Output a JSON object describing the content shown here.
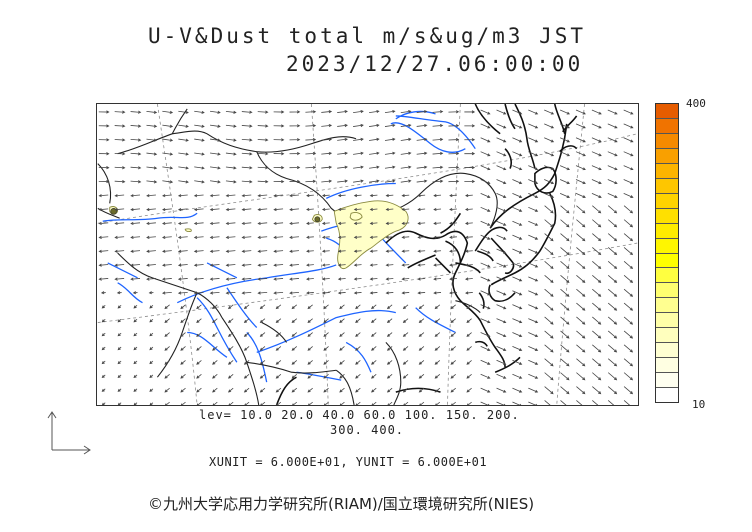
{
  "title": {
    "line1": "U-V&Dust total m/s&ug/m3 JST",
    "line2": "2023/12/27.06:00:00"
  },
  "colorbar": {
    "max_label": "400",
    "min_label": "10",
    "colors": [
      "#e65c00",
      "#f07300",
      "#f58a00",
      "#f9a000",
      "#fcb400",
      "#fec600",
      "#ffd300",
      "#ffe000",
      "#ffec00",
      "#fff600",
      "#ffff00",
      "#ffff40",
      "#ffff70",
      "#ffff90",
      "#ffffa8",
      "#ffffbe",
      "#ffffd2",
      "#ffffe2",
      "#fffff0",
      "#ffffff"
    ]
  },
  "levels": {
    "line1": "lev= 10.0 20.0 40.0 60.0 100. 150. 200.",
    "line2": "300. 400."
  },
  "units": "XUNIT = 6.000E+01, YUNIT = 6.000E+01",
  "credit": "©九州大学応用力学研究所(RIAM)/国立環境研究所(NIES)",
  "map_colors": {
    "coast": "#111111",
    "border": "#222222",
    "river": "#1e64ff",
    "grid": "#8c8c8c",
    "dust_fill": "#ffffc8",
    "dust_line": "#8a8a40"
  }
}
